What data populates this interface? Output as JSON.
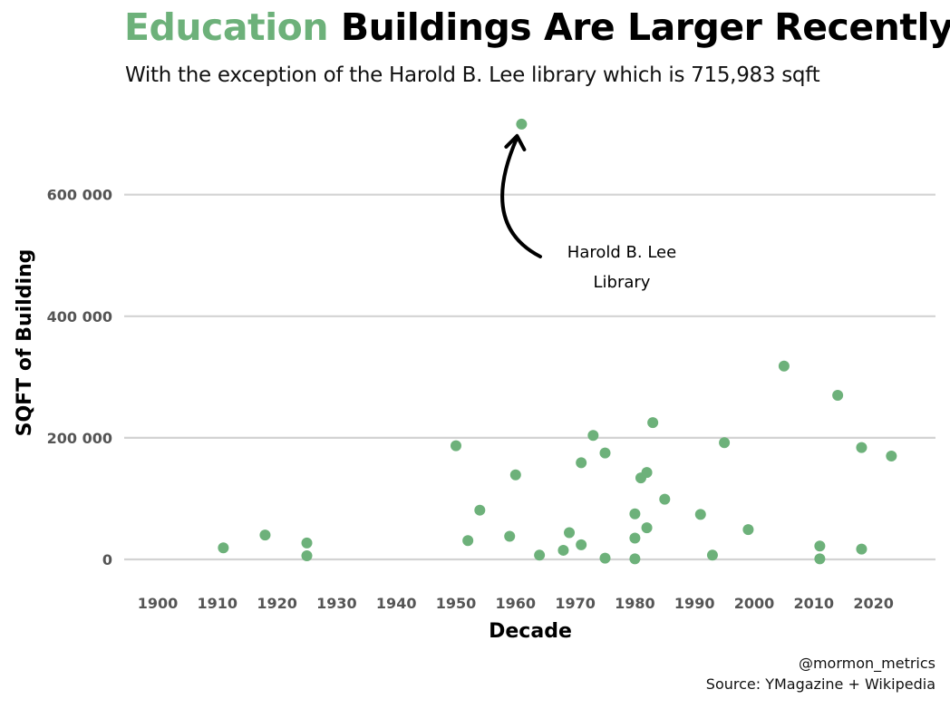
{
  "chart_data": {
    "type": "scatter",
    "title_highlight": "Education",
    "title_rest": "Buildings Are Larger Recently",
    "subtitle": "With the exception of the Harold B. Lee library which is 715,983 sqft",
    "xlabel": "Decade",
    "ylabel": "SQFT of Building",
    "xlim": [
      1897,
      2030
    ],
    "ylim": [
      -40000,
      740000
    ],
    "x_ticks": [
      1900,
      1910,
      1920,
      1930,
      1940,
      1950,
      1960,
      1970,
      1980,
      1990,
      2000,
      2010,
      2020
    ],
    "y_ticks": [
      0,
      200000,
      400000,
      600000
    ],
    "y_tick_labels": [
      "0",
      "200 000",
      "400 000",
      "600 000"
    ],
    "point_color": "#6db17a",
    "grid": "horizontal",
    "annotation": {
      "lines": [
        "Harold B. Lee",
        "Library"
      ],
      "target": [
        1961,
        715983
      ]
    },
    "points": [
      {
        "x": 1911,
        "y": 19000
      },
      {
        "x": 1918,
        "y": 40000
      },
      {
        "x": 1925,
        "y": 27000
      },
      {
        "x": 1925,
        "y": 6000
      },
      {
        "x": 1950,
        "y": 187000
      },
      {
        "x": 1952,
        "y": 31000
      },
      {
        "x": 1954,
        "y": 81000
      },
      {
        "x": 1959,
        "y": 38000
      },
      {
        "x": 1960,
        "y": 139000
      },
      {
        "x": 1961,
        "y": 715983
      },
      {
        "x": 1964,
        "y": 7000
      },
      {
        "x": 1968,
        "y": 15000
      },
      {
        "x": 1969,
        "y": 44000
      },
      {
        "x": 1971,
        "y": 24000
      },
      {
        "x": 1971,
        "y": 159000
      },
      {
        "x": 1973,
        "y": 204000
      },
      {
        "x": 1975,
        "y": 175000
      },
      {
        "x": 1975,
        "y": 2000
      },
      {
        "x": 1980,
        "y": 75000
      },
      {
        "x": 1980,
        "y": 35000
      },
      {
        "x": 1980,
        "y": 1000
      },
      {
        "x": 1981,
        "y": 134000
      },
      {
        "x": 1982,
        "y": 143000
      },
      {
        "x": 1982,
        "y": 52000
      },
      {
        "x": 1983,
        "y": 225000
      },
      {
        "x": 1985,
        "y": 99000
      },
      {
        "x": 1991,
        "y": 74000
      },
      {
        "x": 1993,
        "y": 7000
      },
      {
        "x": 1995,
        "y": 192000
      },
      {
        "x": 1999,
        "y": 49000
      },
      {
        "x": 2005,
        "y": 318000
      },
      {
        "x": 2011,
        "y": 22000
      },
      {
        "x": 2011,
        "y": 1000
      },
      {
        "x": 2014,
        "y": 270000
      },
      {
        "x": 2018,
        "y": 184000
      },
      {
        "x": 2018,
        "y": 17000
      },
      {
        "x": 2023,
        "y": 170000
      }
    ]
  },
  "caption": {
    "handle": "@mormon_metrics",
    "source": "Source: YMagazine + Wikipedia"
  }
}
